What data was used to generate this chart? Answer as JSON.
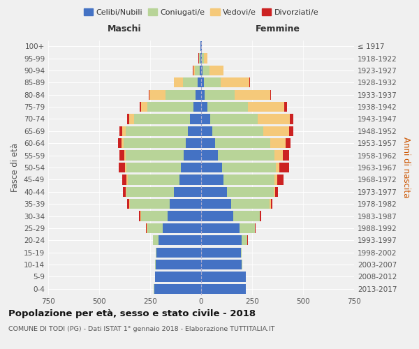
{
  "age_groups": [
    "0-4",
    "5-9",
    "10-14",
    "15-19",
    "20-24",
    "25-29",
    "30-34",
    "35-39",
    "40-44",
    "45-49",
    "50-54",
    "55-59",
    "60-64",
    "65-69",
    "70-74",
    "75-79",
    "80-84",
    "85-89",
    "90-94",
    "95-99",
    "100+"
  ],
  "birth_years": [
    "2013-2017",
    "2008-2012",
    "2003-2007",
    "1998-2002",
    "1993-1997",
    "1988-1992",
    "1983-1987",
    "1978-1982",
    "1973-1977",
    "1968-1972",
    "1963-1967",
    "1958-1962",
    "1953-1957",
    "1948-1952",
    "1943-1947",
    "1938-1942",
    "1933-1937",
    "1928-1932",
    "1923-1927",
    "1918-1922",
    "≤ 1917"
  ],
  "males": {
    "celibi": [
      230,
      225,
      222,
      218,
      210,
      190,
      165,
      155,
      135,
      105,
      98,
      85,
      75,
      65,
      55,
      38,
      28,
      18,
      8,
      4,
      2
    ],
    "coniugati": [
      2,
      2,
      3,
      4,
      25,
      75,
      130,
      195,
      230,
      255,
      268,
      285,
      305,
      305,
      275,
      225,
      148,
      72,
      22,
      5,
      1
    ],
    "vedovi": [
      0,
      0,
      0,
      0,
      1,
      1,
      2,
      3,
      4,
      5,
      6,
      8,
      12,
      18,
      22,
      30,
      78,
      42,
      8,
      2,
      0
    ],
    "divorziati": [
      0,
      0,
      0,
      1,
      2,
      4,
      7,
      10,
      14,
      22,
      32,
      22,
      16,
      12,
      10,
      10,
      4,
      2,
      2,
      1,
      0
    ]
  },
  "females": {
    "nubili": [
      218,
      218,
      198,
      195,
      200,
      188,
      158,
      148,
      128,
      108,
      102,
      82,
      70,
      55,
      45,
      30,
      18,
      12,
      8,
      4,
      2
    ],
    "coniugate": [
      2,
      2,
      3,
      4,
      25,
      75,
      128,
      188,
      228,
      252,
      265,
      278,
      268,
      250,
      232,
      200,
      148,
      85,
      32,
      8,
      1
    ],
    "vedove": [
      0,
      0,
      0,
      0,
      1,
      2,
      3,
      5,
      8,
      12,
      18,
      42,
      78,
      128,
      158,
      178,
      172,
      138,
      68,
      18,
      2
    ],
    "divorziate": [
      0,
      0,
      0,
      1,
      2,
      3,
      5,
      8,
      12,
      32,
      48,
      28,
      22,
      18,
      18,
      12,
      4,
      4,
      2,
      1,
      0
    ]
  },
  "colors": {
    "celibi_nubili": "#4472C4",
    "coniugati": "#B8D498",
    "vedovi": "#F5C97A",
    "divorziati": "#CC2222"
  },
  "xlim": 750,
  "title": "Popolazione per età, sesso e stato civile - 2018",
  "subtitle": "COMUNE DI TODI (PG) - Dati ISTAT 1° gennaio 2018 - Elaborazione TUTTITALIA.IT",
  "ylabel_left": "Fasce di età",
  "ylabel_right": "Anni di nascita",
  "xlabel_males": "Maschi",
  "xlabel_females": "Femmine",
  "bg_color": "#f0f0f0",
  "plot_bg": "#f0f0f0"
}
